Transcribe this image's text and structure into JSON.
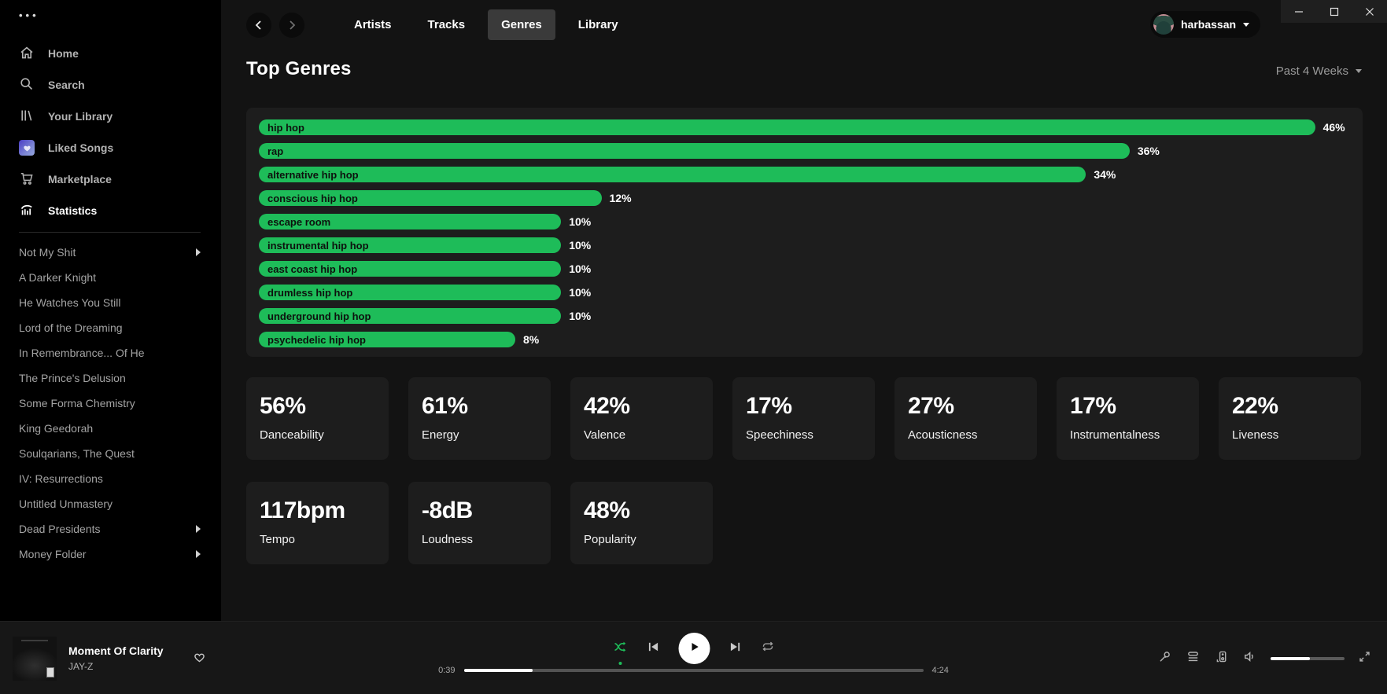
{
  "sidebar": {
    "nav": [
      {
        "label": "Home"
      },
      {
        "label": "Search"
      },
      {
        "label": "Your Library"
      },
      {
        "label": "Liked Songs"
      },
      {
        "label": "Marketplace"
      },
      {
        "label": "Statistics",
        "active": true
      }
    ],
    "playlists": [
      {
        "label": "Not My Shit",
        "expandable": true
      },
      {
        "label": "A Darker Knight"
      },
      {
        "label": "He Watches You Still"
      },
      {
        "label": "Lord of the Dreaming"
      },
      {
        "label": "In Remembrance... Of He"
      },
      {
        "label": "The Prince's Delusion"
      },
      {
        "label": "Some Forma Chemistry"
      },
      {
        "label": "King Geedorah"
      },
      {
        "label": "Soulqarians, The Quest"
      },
      {
        "label": "IV: Resurrections"
      },
      {
        "label": "Untitled Unmastery"
      },
      {
        "label": "Dead Presidents",
        "expandable": true
      },
      {
        "label": "Money Folder",
        "expandable": true
      }
    ]
  },
  "topbar": {
    "tabs": [
      {
        "label": "Artists"
      },
      {
        "label": "Tracks"
      },
      {
        "label": "Genres",
        "active": true
      },
      {
        "label": "Library"
      }
    ],
    "user": {
      "name": "harbassan"
    }
  },
  "page": {
    "title": "Top Genres",
    "period_filter": "Past 4 Weeks"
  },
  "chart_data": {
    "type": "bar",
    "orientation": "horizontal",
    "title": "Top Genres",
    "unit": "percent",
    "legend": false,
    "grid": false,
    "bar_color": "#1ebc59",
    "categories": [
      "hip hop",
      "rap",
      "alternative hip hop",
      "conscious hip hop",
      "escape room",
      "instrumental hip hop",
      "east coast hip hop",
      "drumless hip hop",
      "underground hip hop",
      "psychedelic hip hop"
    ],
    "values": [
      46,
      36,
      34,
      12,
      10,
      10,
      10,
      10,
      10,
      8
    ],
    "value_labels": [
      "46%",
      "36%",
      "34%",
      "12%",
      "10%",
      "10%",
      "10%",
      "10%",
      "10%",
      "8%"
    ],
    "bar_width_pct": [
      96.8,
      79.8,
      75.8,
      31.4,
      27.7,
      27.7,
      27.7,
      27.7,
      27.7,
      23.5
    ]
  },
  "stats_cards": [
    {
      "value": "56%",
      "label": "Danceability"
    },
    {
      "value": "61%",
      "label": "Energy"
    },
    {
      "value": "42%",
      "label": "Valence"
    },
    {
      "value": "17%",
      "label": "Speechiness"
    },
    {
      "value": "27%",
      "label": "Acousticness"
    },
    {
      "value": "17%",
      "label": "Instrumentalness"
    },
    {
      "value": "22%",
      "label": "Liveness"
    },
    {
      "value": "117bpm",
      "label": "Tempo"
    },
    {
      "value": "-8dB",
      "label": "Loudness"
    },
    {
      "value": "48%",
      "label": "Popularity"
    }
  ],
  "player": {
    "track_title": "Moment Of Clarity",
    "artist": "JAY-Z",
    "elapsed": "0:39",
    "duration": "4:24",
    "progress_pct": 15,
    "volume_pct": 53,
    "shuffle_active": true
  },
  "colors": {
    "accent_green": "#1ebc59",
    "page_bg": "#131313",
    "sidebar_bg": "#000000",
    "panel_bg": "#1d1d1d",
    "player_bg": "#171717"
  }
}
